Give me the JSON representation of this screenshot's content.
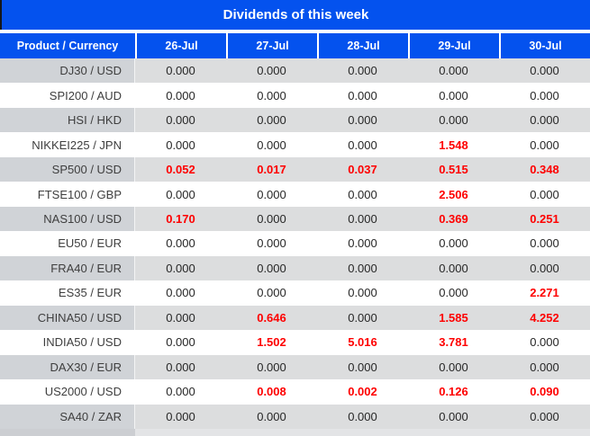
{
  "chart_data": {
    "type": "table",
    "title": "Dividends of this week",
    "columns": [
      "Product / Currency",
      "26-Jul",
      "27-Jul",
      "28-Jul",
      "29-Jul",
      "30-Jul"
    ],
    "rows": [
      {
        "product": "DJ30 / USD",
        "values": [
          "0.000",
          "0.000",
          "0.000",
          "0.000",
          "0.000"
        ]
      },
      {
        "product": "SPI200 / AUD",
        "values": [
          "0.000",
          "0.000",
          "0.000",
          "0.000",
          "0.000"
        ]
      },
      {
        "product": "HSI / HKD",
        "values": [
          "0.000",
          "0.000",
          "0.000",
          "0.000",
          "0.000"
        ]
      },
      {
        "product": "NIKKEI225 / JPN",
        "values": [
          "0.000",
          "0.000",
          "0.000",
          "1.548",
          "0.000"
        ]
      },
      {
        "product": "SP500 / USD",
        "values": [
          "0.052",
          "0.017",
          "0.037",
          "0.515",
          "0.348"
        ]
      },
      {
        "product": "FTSE100 / GBP",
        "values": [
          "0.000",
          "0.000",
          "0.000",
          "2.506",
          "0.000"
        ]
      },
      {
        "product": "NAS100 / USD",
        "values": [
          "0.170",
          "0.000",
          "0.000",
          "0.369",
          "0.251"
        ]
      },
      {
        "product": "EU50 / EUR",
        "values": [
          "0.000",
          "0.000",
          "0.000",
          "0.000",
          "0.000"
        ]
      },
      {
        "product": "FRA40 / EUR",
        "values": [
          "0.000",
          "0.000",
          "0.000",
          "0.000",
          "0.000"
        ]
      },
      {
        "product": "ES35 / EUR",
        "values": [
          "0.000",
          "0.000",
          "0.000",
          "0.000",
          "2.271"
        ]
      },
      {
        "product": "CHINA50 / USD",
        "values": [
          "0.000",
          "0.646",
          "0.000",
          "1.585",
          "4.252"
        ]
      },
      {
        "product": "INDIA50 / USD",
        "values": [
          "0.000",
          "1.502",
          "5.016",
          "3.781",
          "0.000"
        ]
      },
      {
        "product": "DAX30 / EUR",
        "values": [
          "0.000",
          "0.000",
          "0.000",
          "0.000",
          "0.000"
        ]
      },
      {
        "product": "US2000 / USD",
        "values": [
          "0.000",
          "0.008",
          "0.002",
          "0.126",
          "0.090"
        ]
      },
      {
        "product": "SA40 / ZAR",
        "values": [
          "0.000",
          "0.000",
          "0.000",
          "0.000",
          "0.000"
        ]
      }
    ]
  },
  "colors": {
    "header_blue": "#0452EE",
    "highlight_red": "#FE0000",
    "gray_row_label_bg": "#D0D3D7",
    "gray_row_value_bg": "#DCDDDE",
    "white_row_bg": "#FFFFFF",
    "label_text": "#3E3E3E",
    "value_text": "#262626",
    "footer_left_bg": "#CCCED2",
    "footer_right_bg": "#E3E4E6"
  }
}
